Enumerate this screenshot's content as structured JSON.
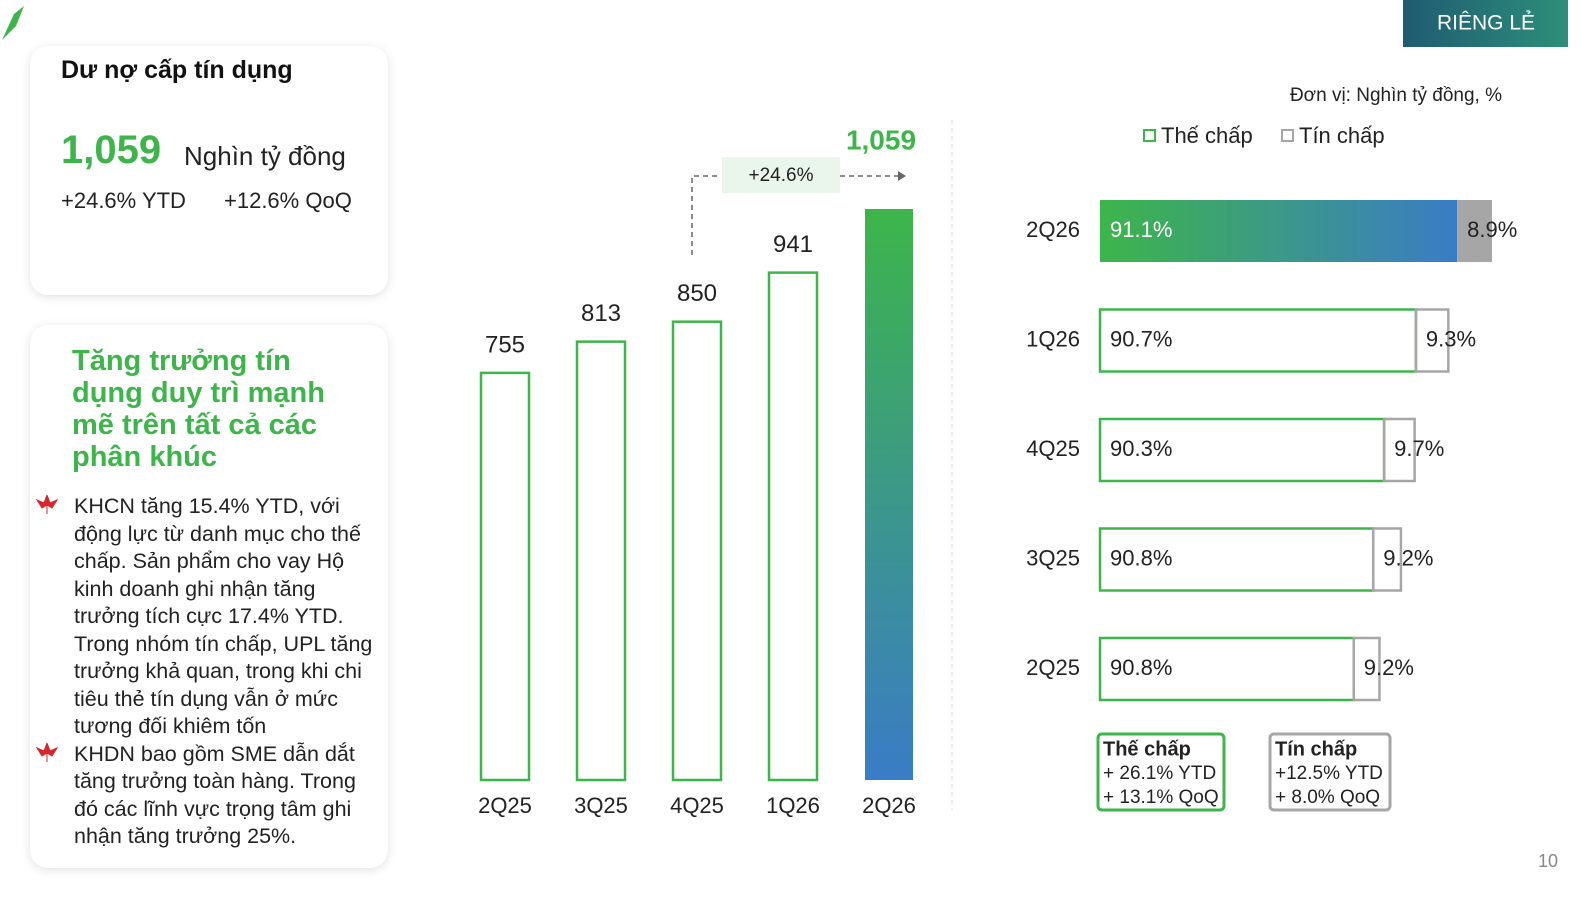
{
  "header": {
    "badge": "RIÊNG LẺ",
    "page_number": "10"
  },
  "summary_card": {
    "title": "Dư nợ cấp tín dụng",
    "value": "1,059",
    "unit": "Nghìn tỷ đồng",
    "ytd": "+24.6% YTD",
    "qoq": "+12.6% QoQ"
  },
  "highlight_card": {
    "title": "Tăng trưởng tín dụng duy trì mạnh mẽ trên tất cả các phân khúc",
    "bullets": [
      "KHCN tăng 15.4% YTD, với động lực từ danh mục cho thế chấp. Sản phẩm cho vay Hộ kinh doanh ghi nhận tăng trưởng tích cực 17.4% YTD. Trong nhóm tín chấp, UPL tăng trưởng khả quan, trong khi chi tiêu thẻ tín dụng vẫn ở mức tương đối khiêm tốn",
      "KHDN bao gồm SME dẫn dắt tăng trưởng toàn hàng. Trong đó các lĩnh vực trọng tâm ghi nhận tăng trưởng 25%."
    ]
  },
  "chart_data": [
    {
      "type": "bar",
      "categories": [
        "2Q25",
        "3Q25",
        "4Q25",
        "1Q26",
        "2Q26"
      ],
      "values": [
        755,
        813,
        850,
        941,
        1059
      ],
      "value_labels": [
        "755",
        "813",
        "850",
        "941",
        "1,059"
      ],
      "annotation": "+24.6%",
      "color": "#3db54a",
      "highlight_colors": [
        "#3db54a",
        "#3a7cc6"
      ]
    },
    {
      "type": "stacked_bar_h",
      "subtitle": "Đơn vị: Nghìn tỷ đồng, %",
      "categories": [
        "2Q26",
        "1Q26",
        "4Q25",
        "3Q25",
        "2Q25"
      ],
      "series": [
        {
          "name": "Thế chấp",
          "color": "#3db54a",
          "values": [
            91.1,
            90.7,
            90.3,
            90.8,
            90.8
          ],
          "value_labels": [
            "91.1%",
            "90.7%",
            "90.3%",
            "90.8%",
            "90.8%"
          ]
        },
        {
          "name": "Tín chấp",
          "color": "#a6a6a6",
          "values": [
            8.9,
            9.3,
            9.7,
            9.2,
            9.2
          ],
          "value_labels": [
            "8.9%",
            "9.3%",
            "9.7%",
            "9.2%",
            "9.2%"
          ]
        }
      ],
      "notes": [
        {
          "title": "Thế chấp",
          "lines": [
            "+ 26.1% YTD",
            "+ 13.1% QoQ"
          ]
        },
        {
          "title": "Tín chấp",
          "lines": [
            "+12.5% YTD",
            "+ 8.0% QoQ"
          ]
        }
      ]
    }
  ]
}
